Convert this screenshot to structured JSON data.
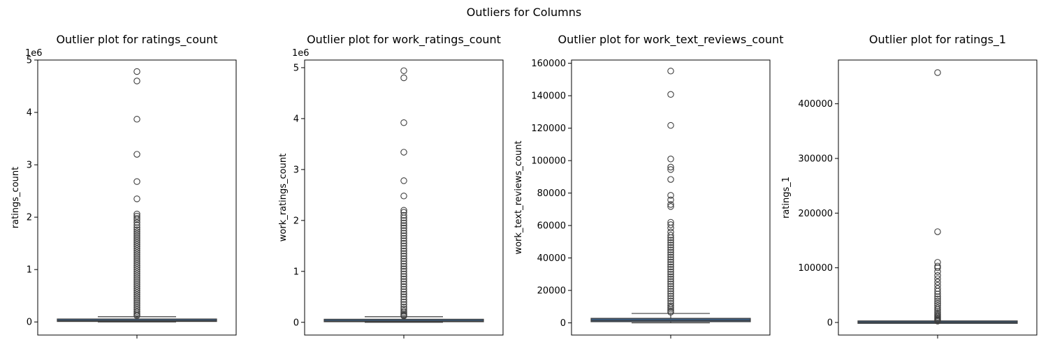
{
  "figure": {
    "suptitle": "Outliers for Columns"
  },
  "chart_data": [
    {
      "type": "box",
      "title": "Outlier plot for ratings_count",
      "xlabel": "",
      "ylabel": "ratings_count",
      "ylim": [
        -250000,
        5000000
      ],
      "yticks": [
        0,
        1000000,
        2000000,
        3000000,
        4000000,
        5000000
      ],
      "ytick_labels": [
        "0",
        "1",
        "2",
        "3",
        "4",
        "5"
      ],
      "offset_label": "1e6",
      "box": {
        "q1": 15000,
        "median": 23000,
        "q3": 50000,
        "whisker_low": 0,
        "whisker_high": 100000
      },
      "outliers": [
        4780000,
        4600000,
        3870000,
        3200000,
        2680000,
        2350000,
        2060000,
        2020000,
        1980000,
        1950000,
        1900000,
        1850000,
        1800000,
        1760000,
        1720000,
        1680000,
        1640000,
        1600000,
        1560000,
        1520000,
        1480000,
        1440000,
        1400000,
        1360000,
        1320000,
        1280000,
        1240000,
        1200000,
        1160000,
        1120000,
        1080000,
        1040000,
        1000000,
        960000,
        920000,
        880000,
        840000,
        800000,
        760000,
        720000,
        680000,
        640000,
        600000,
        560000,
        520000,
        480000,
        440000,
        400000,
        360000,
        320000,
        280000,
        240000,
        200000,
        170000,
        140000,
        120000
      ]
    },
    {
      "type": "box",
      "title": "Outlier plot for work_ratings_count",
      "xlabel": "",
      "ylabel": "work_ratings_count",
      "ylim": [
        -250000,
        5150000
      ],
      "yticks": [
        0,
        1000000,
        2000000,
        3000000,
        4000000,
        5000000
      ],
      "ytick_labels": [
        "0",
        "1",
        "2",
        "3",
        "4",
        "5"
      ],
      "offset_label": "1e6",
      "box": {
        "q1": 16000,
        "median": 25000,
        "q3": 55000,
        "whisker_low": 0,
        "whisker_high": 110000
      },
      "outliers": [
        4940000,
        4800000,
        3920000,
        3340000,
        2780000,
        2480000,
        2200000,
        2160000,
        2100000,
        2050000,
        2000000,
        1950000,
        1900000,
        1850000,
        1800000,
        1750000,
        1700000,
        1650000,
        1600000,
        1550000,
        1500000,
        1450000,
        1400000,
        1350000,
        1300000,
        1250000,
        1200000,
        1150000,
        1100000,
        1050000,
        1000000,
        950000,
        900000,
        850000,
        800000,
        750000,
        700000,
        650000,
        600000,
        550000,
        500000,
        450000,
        400000,
        350000,
        300000,
        260000,
        220000,
        190000,
        160000,
        140000,
        125000
      ]
    },
    {
      "type": "box",
      "title": "Outlier plot for work_text_reviews_count",
      "xlabel": "",
      "ylabel": "work_text_reviews_count",
      "ylim": [
        -7500,
        162000
      ],
      "yticks": [
        0,
        20000,
        40000,
        60000,
        80000,
        100000,
        120000,
        140000,
        160000
      ],
      "ytick_labels": [
        "0",
        "20000",
        "40000",
        "60000",
        "80000",
        "100000",
        "120000",
        "140000",
        "160000"
      ],
      "offset_label": "",
      "box": {
        "q1": 700,
        "median": 1400,
        "q3": 2800,
        "whisker_low": 0,
        "whisker_high": 5800
      },
      "outliers": [
        155200,
        140800,
        121700,
        101000,
        96000,
        94500,
        88400,
        78600,
        75800,
        73000,
        71700,
        62000,
        60500,
        58500,
        56000,
        54000,
        52500,
        51000,
        49500,
        48000,
        46500,
        45000,
        43500,
        42000,
        40500,
        39000,
        37500,
        36000,
        34500,
        33000,
        31500,
        30000,
        28500,
        27000,
        25500,
        24000,
        22500,
        21000,
        19500,
        18000,
        16500,
        15000,
        13500,
        12000,
        10500,
        9500,
        8500,
        7500,
        6600
      ]
    },
    {
      "type": "box",
      "title": "Outlier plot for ratings_1",
      "xlabel": "",
      "ylabel": "ratings_1",
      "ylim": [
        -23000,
        480000
      ],
      "yticks": [
        0,
        100000,
        200000,
        300000,
        400000
      ],
      "ytick_labels": [
        "0",
        "100000",
        "200000",
        "300000",
        "400000"
      ],
      "offset_label": "",
      "box": {
        "q1": 300,
        "median": 500,
        "q3": 900,
        "whisker_low": 0,
        "whisker_high": 1800
      },
      "outliers": [
        457000,
        166000,
        110000,
        103000,
        100000,
        93000,
        86000,
        80000,
        74000,
        68000,
        62000,
        57000,
        52000,
        47000,
        43000,
        39000,
        35000,
        31000,
        27000,
        24000,
        21000,
        18000,
        15000,
        12500,
        10000,
        8000,
        6000,
        4500,
        3200,
        2500
      ]
    }
  ]
}
